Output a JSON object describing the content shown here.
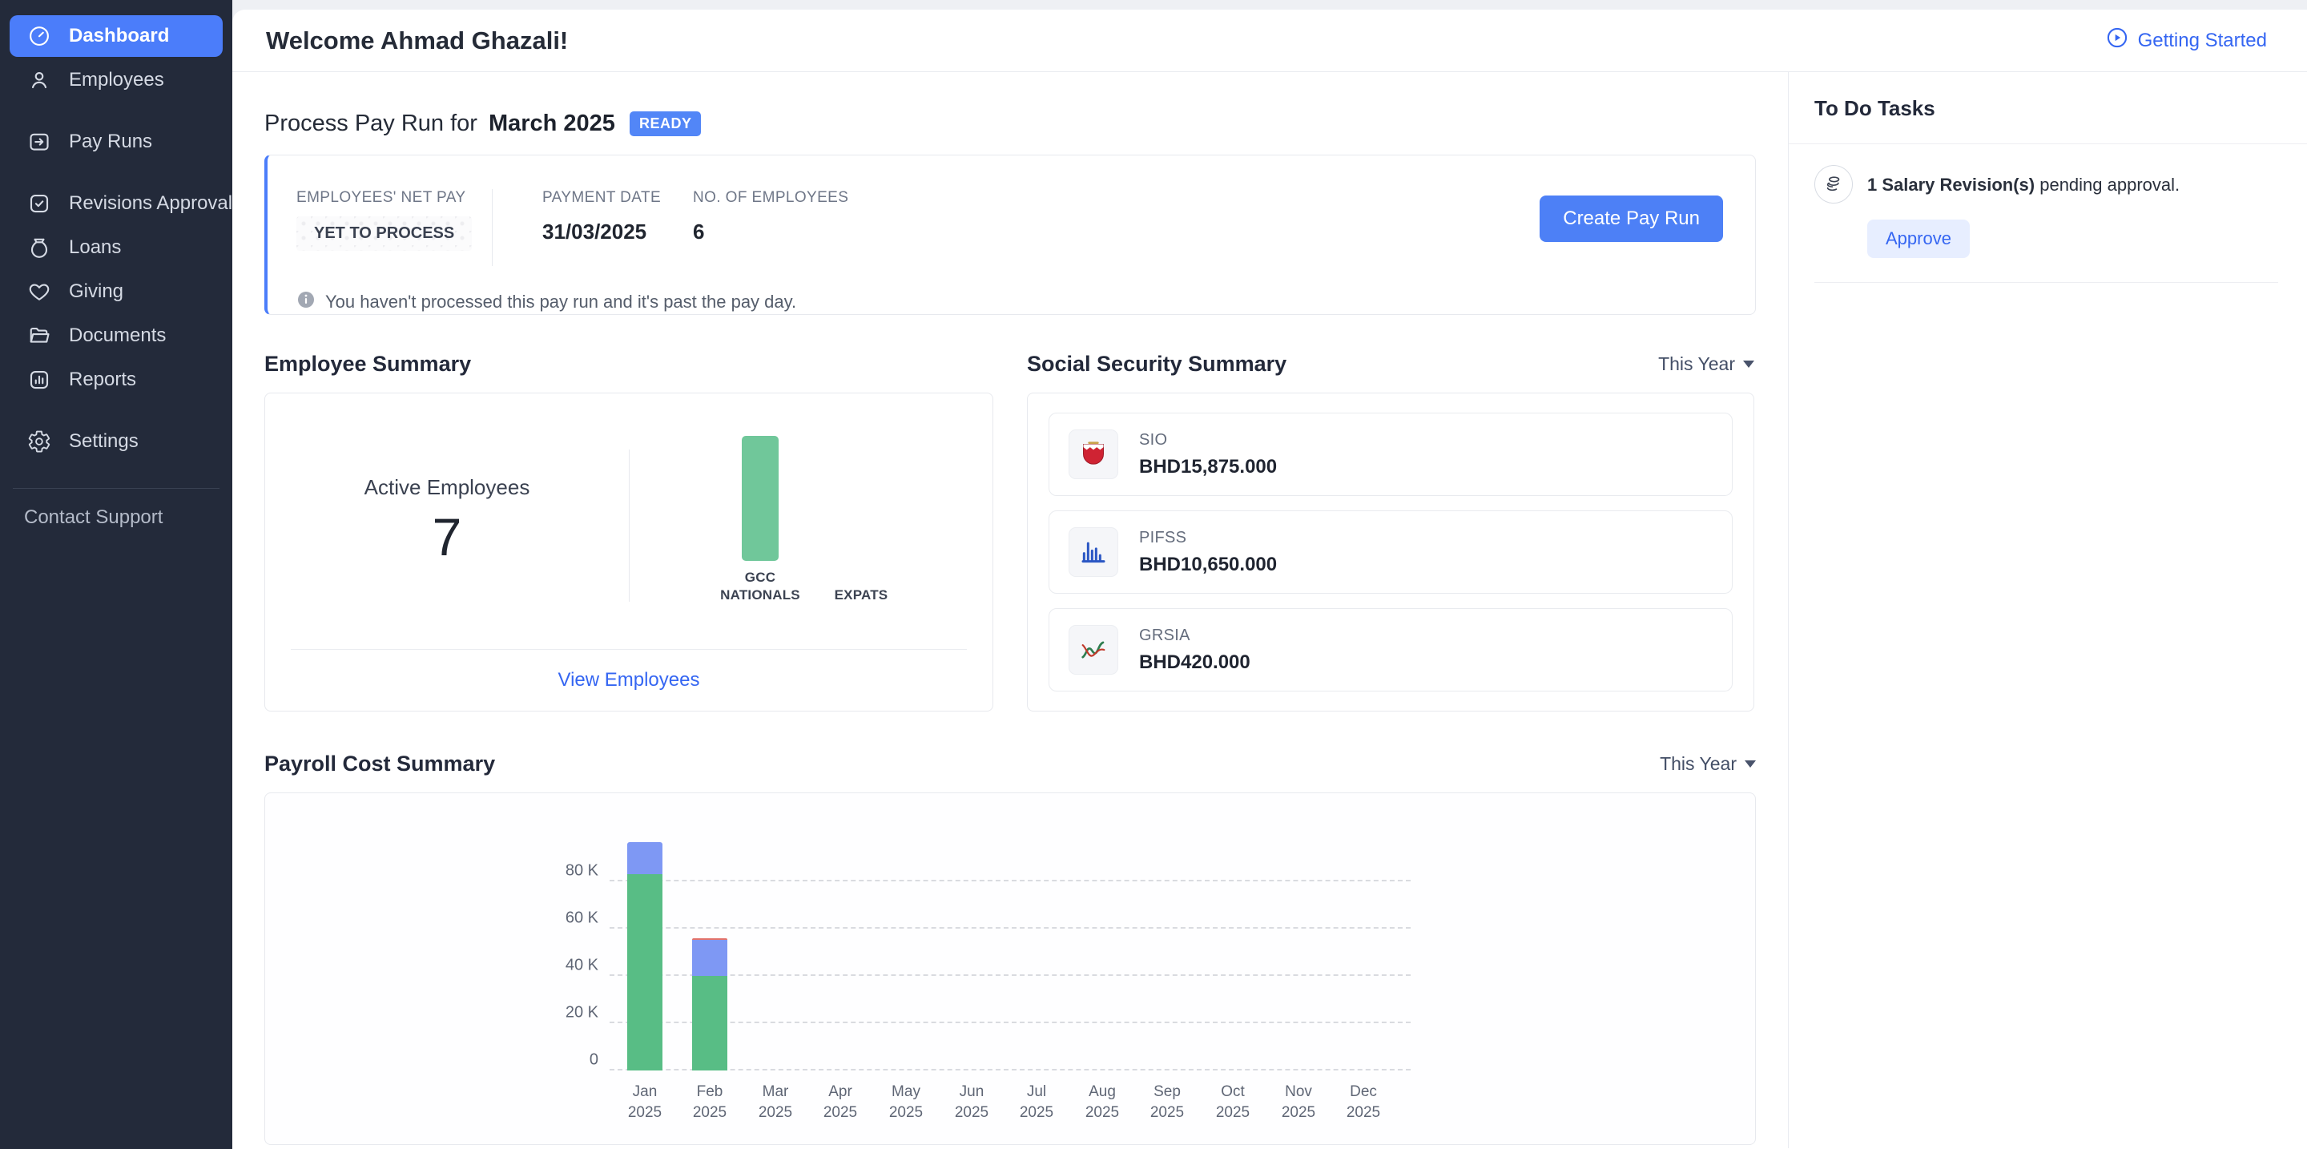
{
  "app": {
    "accent_blue": "#4d80f6",
    "link_blue": "#3566f2",
    "sidebar_bg": "#232a3a",
    "active_item_bg": "#4b7dfa"
  },
  "sidebar": {
    "items": [
      {
        "label": "Dashboard",
        "icon": "dashboard-icon",
        "active": true,
        "gap": false
      },
      {
        "label": "Employees",
        "icon": "employees-icon",
        "active": false,
        "gap": false
      },
      {
        "label": "Pay Runs",
        "icon": "pay-runs-icon",
        "active": false,
        "gap": true
      },
      {
        "label": "Revisions Approval",
        "icon": "revisions-approval-icon",
        "active": false,
        "gap": true
      },
      {
        "label": "Loans",
        "icon": "loans-icon",
        "active": false,
        "gap": false
      },
      {
        "label": "Giving",
        "icon": "giving-icon",
        "active": false,
        "gap": false
      },
      {
        "label": "Documents",
        "icon": "documents-icon",
        "active": false,
        "gap": false
      },
      {
        "label": "Reports",
        "icon": "reports-icon",
        "active": false,
        "gap": false
      },
      {
        "label": "Settings",
        "icon": "settings-icon",
        "active": false,
        "gap": true
      }
    ],
    "footer_link": "Contact Support"
  },
  "header": {
    "title": "Welcome Ahmad Ghazali!",
    "getting_started": "Getting Started"
  },
  "pay_run": {
    "title_prefix": "Process Pay Run for",
    "title_period": "March 2025",
    "status_badge": "READY",
    "net_pay_label": "EMPLOYEES' NET PAY",
    "net_pay_value": "YET TO PROCESS",
    "payment_date_label": "PAYMENT DATE",
    "payment_date": "31/03/2025",
    "employees_label": "NO. OF EMPLOYEES",
    "employees_count": "6",
    "create_button": "Create Pay Run",
    "info": "You haven't processed this pay run and it's past the pay day."
  },
  "employee_summary": {
    "title": "Employee Summary",
    "active_label": "Active Employees",
    "active_count": "7",
    "link": "View Employees",
    "chart_data": {
      "type": "bar",
      "categories": [
        "GCC NATIONALS",
        "EXPATS"
      ],
      "values": [
        7,
        0
      ],
      "bar_color": "#70c79a",
      "ylim": [
        0,
        7
      ]
    }
  },
  "social_security": {
    "title": "Social Security Summary",
    "filter": "This Year",
    "rows": [
      {
        "label": "SIO",
        "value": "BHD15,875.000",
        "icon": "sio-emblem-icon"
      },
      {
        "label": "PIFSS",
        "value": "BHD10,650.000",
        "icon": "pifss-chart-icon"
      },
      {
        "label": "GRSIA",
        "value": "BHD420.000",
        "icon": "grsia-chart-icon"
      }
    ]
  },
  "payroll_cost": {
    "title": "Payroll Cost Summary",
    "filter": "This Year",
    "chart_data": {
      "type": "bar",
      "stacked": true,
      "categories": [
        "Jan 2025",
        "Feb 2025",
        "Mar 2025",
        "Apr 2025",
        "May 2025",
        "Jun 2025",
        "Jul 2025",
        "Aug 2025",
        "Sep 2025",
        "Oct 2025",
        "Nov 2025",
        "Dec 2025"
      ],
      "series": [
        {
          "name": "green",
          "color": "#58bd85",
          "values": [
            83000,
            40000,
            0,
            0,
            0,
            0,
            0,
            0,
            0,
            0,
            0,
            0
          ]
        },
        {
          "name": "blue",
          "color": "#7e98f4",
          "values": [
            13500,
            15300,
            0,
            0,
            0,
            0,
            0,
            0,
            0,
            0,
            0,
            0
          ]
        },
        {
          "name": "red",
          "color": "#e2726b",
          "values": [
            0,
            600,
            0,
            0,
            0,
            0,
            0,
            0,
            0,
            0,
            0,
            0
          ]
        }
      ],
      "y_ticks": [
        "0",
        "20 K",
        "40 K",
        "60 K",
        "80 K"
      ],
      "y_tick_values": [
        0,
        20000,
        40000,
        60000,
        80000
      ],
      "ylim": [
        0,
        110000
      ],
      "grid": "dashed"
    }
  },
  "todo": {
    "title": "To Do Tasks",
    "tasks": [
      {
        "bold": "1 Salary Revision(s)",
        "text": " pending approval.",
        "action": "Approve",
        "icon": "coins-icon"
      }
    ]
  }
}
